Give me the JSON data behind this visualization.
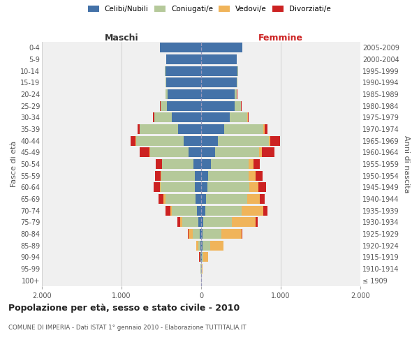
{
  "age_groups": [
    "100+",
    "95-99",
    "90-94",
    "85-89",
    "80-84",
    "75-79",
    "70-74",
    "65-69",
    "60-64",
    "55-59",
    "50-54",
    "45-49",
    "40-44",
    "35-39",
    "30-34",
    "25-29",
    "20-24",
    "15-19",
    "10-14",
    "5-9",
    "0-4"
  ],
  "birth_years": [
    "≤ 1909",
    "1910-1914",
    "1915-1919",
    "1920-1924",
    "1925-1929",
    "1930-1934",
    "1935-1939",
    "1940-1944",
    "1945-1949",
    "1950-1954",
    "1955-1959",
    "1960-1964",
    "1965-1969",
    "1970-1974",
    "1975-1979",
    "1980-1984",
    "1985-1989",
    "1990-1994",
    "1995-1999",
    "2000-2004",
    "2005-2009"
  ],
  "colors": {
    "celibi": "#4472a8",
    "coniugati": "#b5c99a",
    "vedovi": "#f0b45a",
    "divorziati": "#cc2222"
  },
  "males": {
    "celibi": [
      2,
      4,
      5,
      8,
      15,
      35,
      55,
      70,
      75,
      80,
      100,
      160,
      220,
      290,
      370,
      430,
      420,
      440,
      450,
      440,
      520
    ],
    "coniugati": [
      0,
      2,
      8,
      30,
      90,
      200,
      310,
      380,
      430,
      420,
      390,
      480,
      600,
      480,
      220,
      80,
      25,
      5,
      2,
      0,
      0
    ],
    "vedovi": [
      0,
      2,
      8,
      25,
      55,
      30,
      25,
      25,
      15,
      8,
      5,
      5,
      5,
      2,
      2,
      2,
      0,
      0,
      0,
      0,
      0
    ],
    "divorziati": [
      0,
      0,
      2,
      2,
      5,
      30,
      55,
      60,
      75,
      75,
      75,
      130,
      65,
      30,
      10,
      5,
      2,
      0,
      0,
      0,
      0
    ]
  },
  "females": {
    "celibi": [
      2,
      4,
      10,
      15,
      20,
      30,
      50,
      65,
      75,
      90,
      120,
      175,
      210,
      290,
      360,
      420,
      420,
      450,
      460,
      445,
      520
    ],
    "coniugati": [
      0,
      2,
      20,
      95,
      230,
      360,
      460,
      510,
      530,
      510,
      480,
      550,
      640,
      490,
      220,
      80,
      30,
      5,
      2,
      0,
      0
    ],
    "vedovi": [
      2,
      8,
      55,
      170,
      260,
      290,
      270,
      165,
      115,
      80,
      55,
      35,
      20,
      15,
      5,
      2,
      0,
      0,
      0,
      0,
      0
    ],
    "divorziati": [
      0,
      0,
      2,
      5,
      10,
      30,
      55,
      55,
      100,
      90,
      80,
      165,
      120,
      40,
      15,
      5,
      2,
      0,
      0,
      0,
      0
    ]
  },
  "title": "Popolazione per età, sesso e stato civile - 2010",
  "subtitle": "COMUNE DI IMPERIA - Dati ISTAT 1° gennaio 2010 - Elaborazione TUTTITALIA.IT",
  "ylabel_left": "Fasce di età",
  "ylabel_right": "Anni di nascita",
  "xlabel_left": "Maschi",
  "xlabel_right": "Femmine",
  "xlim": 2000,
  "bg_color": "#ffffff",
  "plot_bg_color": "#f0f0f0",
  "grid_color": "#cccccc",
  "legend_labels": [
    "Celibi/Nubili",
    "Coniugati/e",
    "Vedovi/e",
    "Divorziati/e"
  ]
}
